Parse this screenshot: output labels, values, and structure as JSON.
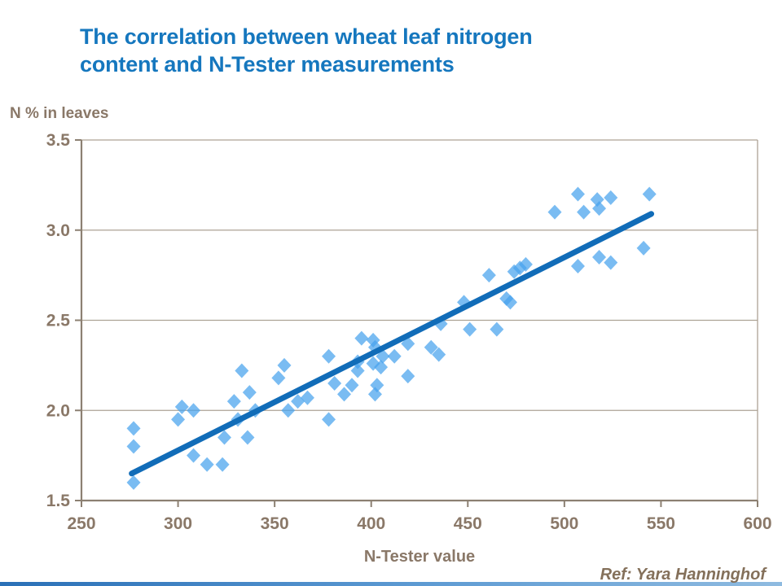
{
  "slide": {
    "title_line1": "The correlation between wheat leaf nitrogen",
    "title_line2": "content and N-Tester measurements",
    "reference": "Ref: Yara Hanninghof"
  },
  "colors": {
    "title": "#1577BE",
    "axis_text": "#8A7868",
    "axis_line": "#8C8072",
    "grid_line": "#ADA294",
    "marker_fill": "#47A2ED",
    "trend_line": "#116CB8",
    "ref_text": "#84705A"
  },
  "chart_data": {
    "type": "scatter",
    "title": "",
    "y_axis_label": "N % in leaves",
    "x_axis_label": "N-Tester value",
    "xlim": [
      250,
      600
    ],
    "ylim": [
      1.5,
      3.5
    ],
    "x_ticks": [
      250,
      300,
      350,
      400,
      450,
      500,
      550,
      600
    ],
    "y_ticks": [
      1.5,
      2.0,
      2.5,
      3.0,
      3.5
    ],
    "grid": "horizontal",
    "legend": "none",
    "marker": "diamond",
    "points": [
      [
        277,
        1.9
      ],
      [
        277,
        1.8
      ],
      [
        277,
        1.6
      ],
      [
        300,
        1.95
      ],
      [
        302,
        2.02
      ],
      [
        308,
        2.0
      ],
      [
        308,
        1.75
      ],
      [
        315,
        1.7
      ],
      [
        323,
        1.7
      ],
      [
        324,
        1.85
      ],
      [
        329,
        2.05
      ],
      [
        331,
        1.95
      ],
      [
        333,
        2.22
      ],
      [
        336,
        1.85
      ],
      [
        337,
        2.1
      ],
      [
        340,
        2.0
      ],
      [
        352,
        2.18
      ],
      [
        355,
        2.25
      ],
      [
        357,
        2.0
      ],
      [
        362,
        2.05
      ],
      [
        367,
        2.07
      ],
      [
        378,
        2.3
      ],
      [
        378,
        1.95
      ],
      [
        381,
        2.15
      ],
      [
        386,
        2.09
      ],
      [
        390,
        2.14
      ],
      [
        393,
        2.27
      ],
      [
        393,
        2.22
      ],
      [
        395,
        2.4
      ],
      [
        401,
        2.39
      ],
      [
        402,
        2.35
      ],
      [
        401,
        2.26
      ],
      [
        405,
        2.24
      ],
      [
        403,
        2.14
      ],
      [
        402,
        2.09
      ],
      [
        406,
        2.3
      ],
      [
        412,
        2.3
      ],
      [
        419,
        2.37
      ],
      [
        419,
        2.19
      ],
      [
        431,
        2.35
      ],
      [
        435,
        2.31
      ],
      [
        436,
        2.48
      ],
      [
        448,
        2.6
      ],
      [
        451,
        2.45
      ],
      [
        461,
        2.75
      ],
      [
        465,
        2.45
      ],
      [
        470,
        2.62
      ],
      [
        472,
        2.6
      ],
      [
        474,
        2.77
      ],
      [
        477,
        2.79
      ],
      [
        480,
        2.81
      ],
      [
        495,
        3.1
      ],
      [
        507,
        3.2
      ],
      [
        507,
        2.8
      ],
      [
        510,
        3.1
      ],
      [
        517,
        3.17
      ],
      [
        518,
        3.12
      ],
      [
        518,
        2.85
      ],
      [
        524,
        3.18
      ],
      [
        524,
        2.82
      ],
      [
        541,
        2.9
      ],
      [
        544,
        3.2
      ]
    ],
    "trend_line": {
      "x1": 276,
      "y1": 1.65,
      "x2": 545,
      "y2": 3.09
    }
  }
}
